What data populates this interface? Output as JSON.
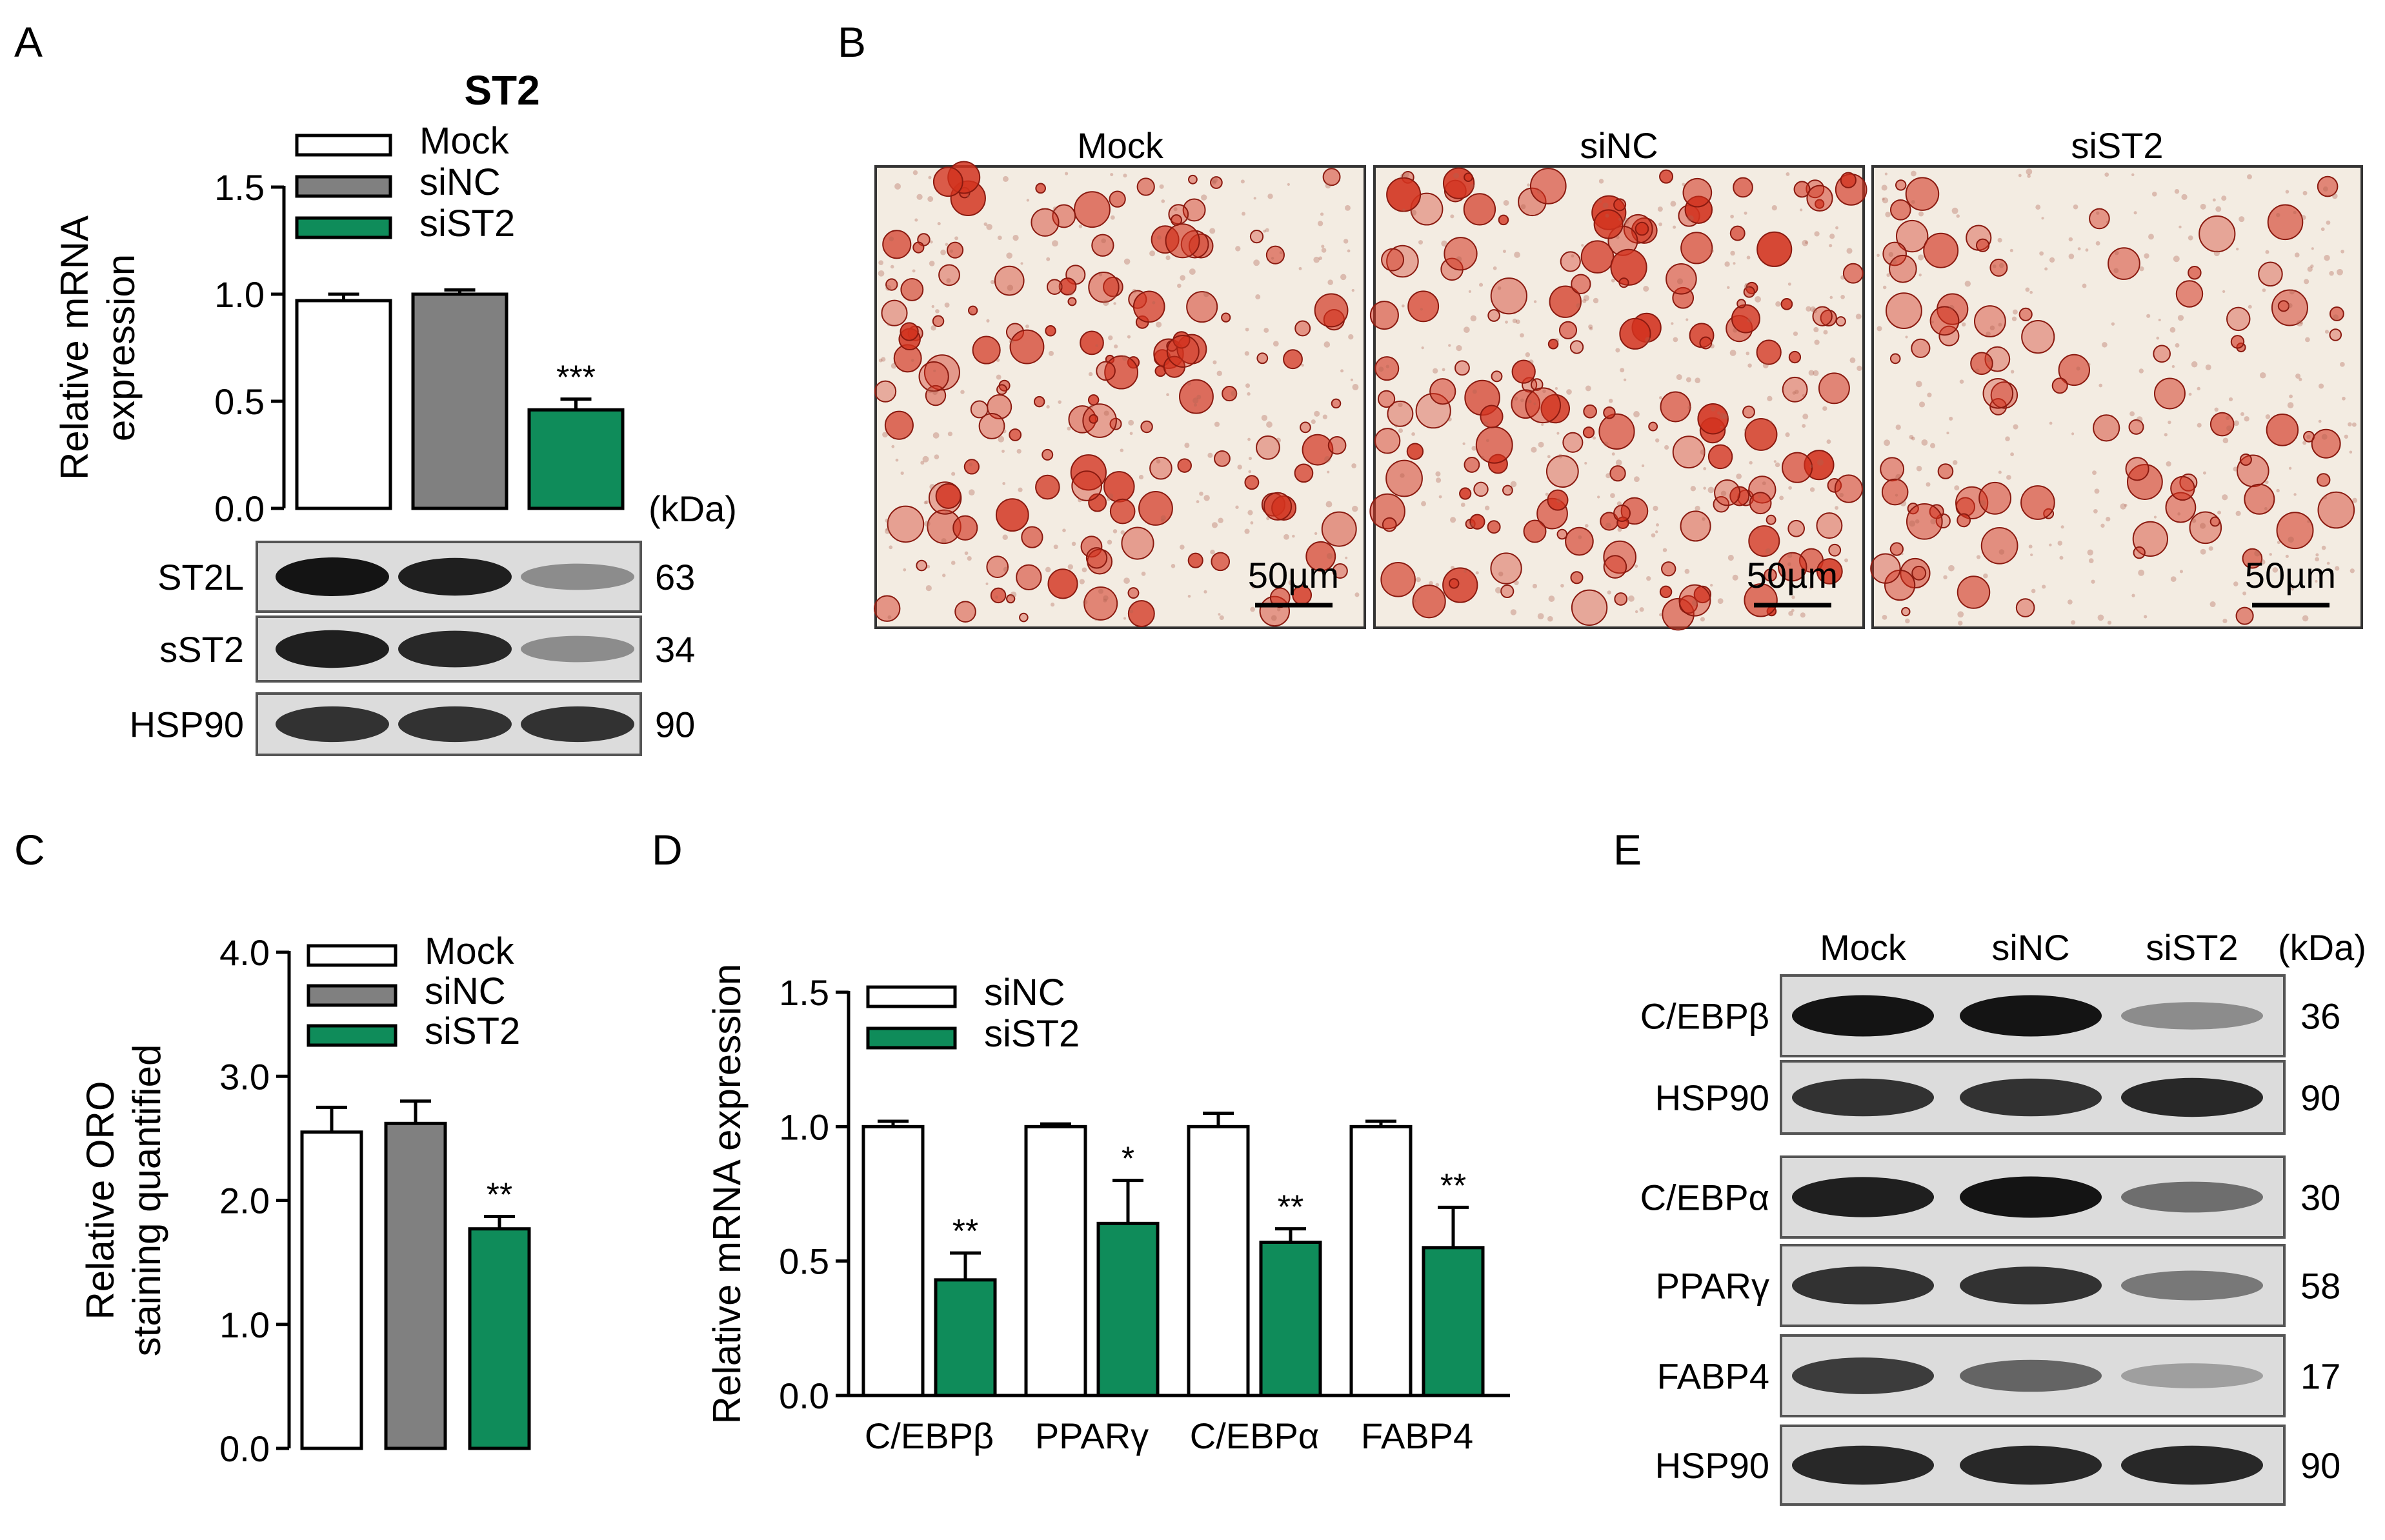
{
  "panels": {
    "a": "A",
    "b": "B",
    "c": "C",
    "d": "D",
    "e": "E"
  },
  "colors": {
    "mock": "#ffffff",
    "sinc": "#808080",
    "sist2": "#0f8c5a",
    "axis": "#000000",
    "blot_bg": "#dcdcdc",
    "band": "#141414",
    "stain": "#d2321e",
    "stain_bg": "#f3ece2"
  },
  "chart_data": [
    {
      "panel": "A",
      "type": "bar",
      "title": "ST2",
      "ylabel": "Relative mRNA expression",
      "ylabel_lines": [
        "Relative mRNA",
        "expression"
      ],
      "ylim": [
        0,
        1.5
      ],
      "yticks": [
        "0.0",
        "0.5",
        "1.0",
        "1.5"
      ],
      "legend_position": "top",
      "categories": [
        "Mock",
        "siNC",
        "siST2"
      ],
      "series": [
        {
          "name": "Mock",
          "value": 0.97,
          "error": 0.03,
          "color": "#ffffff",
          "sig": ""
        },
        {
          "name": "siNC",
          "value": 1.0,
          "error": 0.02,
          "color": "#808080",
          "sig": ""
        },
        {
          "name": "siST2",
          "value": 0.46,
          "error": 0.05,
          "color": "#0f8c5a",
          "sig": "***"
        }
      ],
      "legend": [
        "Mock",
        "siNC",
        "siST2"
      ]
    },
    {
      "panel": "C",
      "type": "bar",
      "ylabel": "Relative ORO staining quantified",
      "ylabel_lines": [
        "Relative ORO",
        "staining quantified"
      ],
      "ylim": [
        0,
        4
      ],
      "yticks": [
        "0.0",
        "1.0",
        "2.0",
        "3.0",
        "4.0"
      ],
      "legend_position": "top-right",
      "categories": [
        "Mock",
        "siNC",
        "siST2"
      ],
      "series": [
        {
          "name": "Mock",
          "value": 2.55,
          "error": 0.2,
          "color": "#ffffff",
          "sig": ""
        },
        {
          "name": "siNC",
          "value": 2.62,
          "error": 0.18,
          "color": "#808080",
          "sig": ""
        },
        {
          "name": "siST2",
          "value": 1.77,
          "error": 0.1,
          "color": "#0f8c5a",
          "sig": "**"
        }
      ],
      "legend": [
        "Mock",
        "siNC",
        "siST2"
      ]
    },
    {
      "panel": "D",
      "type": "bar",
      "ylabel": "Relative mRNA expression",
      "ylim": [
        0,
        1.5
      ],
      "yticks": [
        "0.0",
        "0.5",
        "1.0",
        "1.5"
      ],
      "legend_position": "top-left",
      "categories": [
        "C/EBPβ",
        "PPARγ",
        "C/EBPα",
        "FABP4"
      ],
      "series": [
        {
          "name": "siNC",
          "color": "#ffffff",
          "values": [
            1.0,
            1.0,
            1.0,
            1.0
          ],
          "errors": [
            0.02,
            0.01,
            0.05,
            0.02
          ],
          "sig": [
            "",
            "",
            "",
            ""
          ]
        },
        {
          "name": "siST2",
          "color": "#0f8c5a",
          "values": [
            0.43,
            0.64,
            0.57,
            0.55
          ],
          "errors": [
            0.1,
            0.16,
            0.05,
            0.15
          ],
          "sig": [
            "**",
            "*",
            "**",
            "**"
          ]
        }
      ],
      "legend": [
        "siNC",
        "siST2"
      ]
    }
  ],
  "blot_a": {
    "unit": "(kDa)",
    "rows": [
      {
        "label": "ST2L",
        "kda": "63",
        "bands": [
          1.0,
          0.95,
          0.4
        ]
      },
      {
        "label": "sST2",
        "kda": "34",
        "bands": [
          0.95,
          0.9,
          0.4
        ]
      },
      {
        "label": "HSP90",
        "kda": "90",
        "bands": [
          0.85,
          0.85,
          0.85
        ]
      }
    ]
  },
  "images_b": {
    "labels": [
      "Mock",
      "siNC",
      "siST2"
    ],
    "scale_bar": "50µm",
    "density": [
      0.9,
      1.0,
      0.55
    ]
  },
  "blot_e": {
    "columns": [
      "Mock",
      "siNC",
      "siST2"
    ],
    "unit": "(kDa)",
    "group1": [
      {
        "label": "C/EBPβ",
        "kda": "36",
        "bands": [
          1.0,
          1.0,
          0.4
        ]
      },
      {
        "label": "HSP90",
        "kda": "90",
        "bands": [
          0.85,
          0.85,
          0.9
        ]
      }
    ],
    "group2": [
      {
        "label": "C/EBPα",
        "kda": "30",
        "bands": [
          0.95,
          1.0,
          0.55
        ]
      },
      {
        "label": "PPARγ",
        "kda": "58",
        "bands": [
          0.85,
          0.85,
          0.5
        ]
      },
      {
        "label": "FABP4",
        "kda": "17",
        "bands": [
          0.8,
          0.6,
          0.3
        ]
      },
      {
        "label": "HSP90",
        "kda": "90",
        "bands": [
          0.9,
          0.9,
          0.9
        ]
      }
    ]
  }
}
